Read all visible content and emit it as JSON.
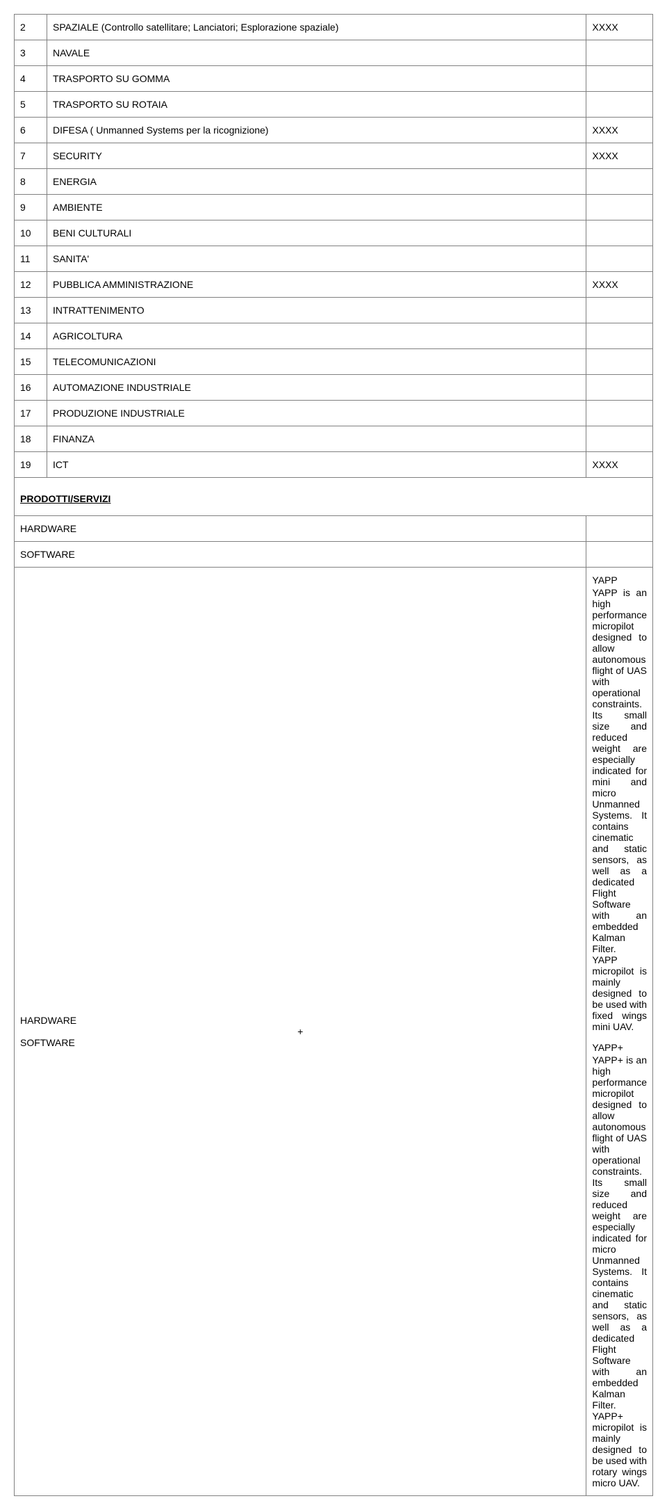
{
  "sectors": [
    {
      "num": "2",
      "label": "SPAZIALE (Controllo satellitare; Lanciatori; Esplorazione spaziale)",
      "mark": "XXXX"
    },
    {
      "num": "3",
      "label": "NAVALE",
      "mark": ""
    },
    {
      "num": "4",
      "label": "TRASPORTO SU GOMMA",
      "mark": ""
    },
    {
      "num": "5",
      "label": "TRASPORTO SU ROTAIA",
      "mark": ""
    },
    {
      "num": "6",
      "label": "DIFESA  ( Unmanned Systems  per la ricognizione)",
      "mark": "XXXX"
    },
    {
      "num": "7",
      "label": "SECURITY",
      "mark": "XXXX"
    },
    {
      "num": "8",
      "label": "ENERGIA",
      "mark": ""
    },
    {
      "num": "9",
      "label": "AMBIENTE",
      "mark": ""
    },
    {
      "num": "10",
      "label": "BENI CULTURALI",
      "mark": ""
    },
    {
      "num": "11",
      "label": "SANITA'",
      "mark": ""
    },
    {
      "num": "12",
      "label": "PUBBLICA AMMINISTRAZIONE",
      "mark": "XXXX"
    },
    {
      "num": "13",
      "label": "INTRATTENIMENTO",
      "mark": ""
    },
    {
      "num": "14",
      "label": "AGRICOLTURA",
      "mark": ""
    },
    {
      "num": "15",
      "label": "TELECOMUNICAZIONI",
      "mark": ""
    },
    {
      "num": "16",
      "label": "AUTOMAZIONE INDUSTRIALE",
      "mark": ""
    },
    {
      "num": "17",
      "label": "PRODUZIONE INDUSTRIALE",
      "mark": ""
    },
    {
      "num": "18",
      "label": "FINANZA",
      "mark": ""
    },
    {
      "num": "19",
      "label": "ICT",
      "mark": "XXXX"
    }
  ],
  "ps": {
    "title": "PRODOTTI/SERVIZI",
    "rows": {
      "hw": "HARDWARE",
      "sw": "SOFTWARE",
      "hwsw_1": "HARDWARE",
      "hwsw_plus": "+",
      "hwsw_2": "SOFTWARE"
    },
    "yapp": {
      "heading": "YAPP",
      "body": "YAPP is an high performance micropilot designed  to allow autonomous flight of UAS with operational constraints. Its small size and reduced weight are especially indicated for mini and micro Unmanned Systems. It contains cinematic and static sensors, as well as a dedicated Flight Software with an embedded Kalman Filter.",
      "body2": "YAPP micropilot is mainly designed to be used with fixed wings mini UAV."
    },
    "yapp_plus": {
      "heading": "YAPP+",
      "body": "YAPP+ is an high performance micropilot designed  to allow autonomous flight of UAS with operational constraints. Its small size and reduced weight are especially indicated for micro Unmanned Systems. It contains cinematic and static sensors, as well as a dedicated Flight Software with an embedded Kalman Filter.",
      "body2": "YAPP+ micropilot is mainly designed to be used with rotary wings micro UAV."
    }
  }
}
